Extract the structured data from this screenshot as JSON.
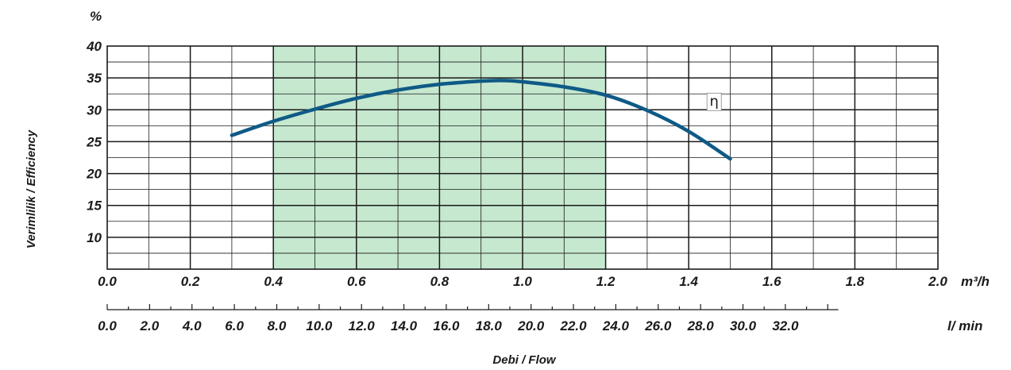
{
  "chart_data": {
    "type": "line",
    "y_unit": "%",
    "ylabel": "Verimlilik / Efficiency",
    "xlabel": "Debi / Flow",
    "ylim": [
      5,
      40
    ],
    "y_ticks": [
      10,
      15,
      20,
      25,
      30,
      35,
      40
    ],
    "y_tick_labels": [
      "10",
      "15",
      "20",
      "25",
      "30",
      "35",
      "40"
    ],
    "xlim": [
      0,
      2.0
    ],
    "x_ticks": [
      0.0,
      0.2,
      0.4,
      0.6,
      0.8,
      1.0,
      1.2,
      1.4,
      1.6,
      1.8,
      2.0
    ],
    "x_tick_labels": [
      "0.0",
      "0.2",
      "0.4",
      "0.6",
      "0.8",
      "1.0",
      "1.2",
      "1.4",
      "1.6",
      "1.8",
      "2.0"
    ],
    "x_unit": "m³/h",
    "x2_unit": "l/ min",
    "x2_ticks": [
      0,
      2,
      4,
      6,
      8,
      10,
      12,
      14,
      16,
      18,
      20,
      22,
      24,
      26,
      28,
      30,
      32
    ],
    "x2_tick_labels": [
      "0.0",
      "2.0",
      "4.0",
      "6.0",
      "8.0",
      "10.0",
      "12.0",
      "14.0",
      "16.0",
      "18.0",
      "20.0",
      "22.0",
      "24.0",
      "26.0",
      "28.0",
      "30.0",
      "32.0"
    ],
    "highlight_range": [
      0.4,
      1.2
    ],
    "grid": true,
    "series": [
      {
        "name": "η",
        "color": "#0f5a86",
        "x": [
          0.3,
          0.4,
          0.5,
          0.6,
          0.7,
          0.8,
          0.9,
          0.95,
          1.0,
          1.1,
          1.2,
          1.3,
          1.4,
          1.5
        ],
        "y": [
          26.0,
          28.2,
          30.1,
          31.8,
          33.1,
          34.0,
          34.5,
          34.6,
          34.4,
          33.6,
          32.3,
          29.9,
          26.6,
          22.3
        ]
      }
    ],
    "highlight_color": "#c5e8cf",
    "grid_color": "#1a1a1a"
  }
}
